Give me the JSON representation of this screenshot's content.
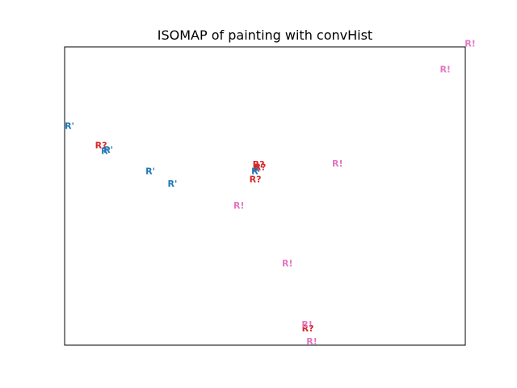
{
  "chart_data": {
    "type": "scatter",
    "title": "ISOMAP of painting with convHist",
    "xlabel": "",
    "ylabel": "",
    "xlim": [
      0,
      100
    ],
    "ylim": [
      0,
      100
    ],
    "axis_ticks": "hidden",
    "grid": false,
    "marker": "text",
    "series": [
      {
        "label": "R'",
        "color": "#1f77b4",
        "points": [
          {
            "x": 1.2,
            "y": 73.4
          },
          {
            "x": 10.3,
            "y": 65.0
          },
          {
            "x": 10.9,
            "y": 65.5
          },
          {
            "x": 21.4,
            "y": 58.2
          },
          {
            "x": 26.9,
            "y": 54.0
          },
          {
            "x": 47.8,
            "y": 58.2
          },
          {
            "x": 48.2,
            "y": 59.1
          }
        ]
      },
      {
        "label": "R?",
        "color": "#d62728",
        "points": [
          {
            "x": 9.1,
            "y": 67.0
          },
          {
            "x": 48.4,
            "y": 60.6
          },
          {
            "x": 48.8,
            "y": 59.6
          },
          {
            "x": 47.6,
            "y": 55.5
          },
          {
            "x": 60.7,
            "y": 5.6
          }
        ]
      },
      {
        "label": "R!",
        "color": "#e377c2",
        "points": [
          {
            "x": 101.2,
            "y": 101.1
          },
          {
            "x": 95.0,
            "y": 92.4
          },
          {
            "x": 68.1,
            "y": 60.8
          },
          {
            "x": 43.5,
            "y": 46.8
          },
          {
            "x": 55.6,
            "y": 27.4
          },
          {
            "x": 60.5,
            "y": 6.9
          },
          {
            "x": 61.7,
            "y": 1.2
          }
        ]
      }
    ]
  }
}
